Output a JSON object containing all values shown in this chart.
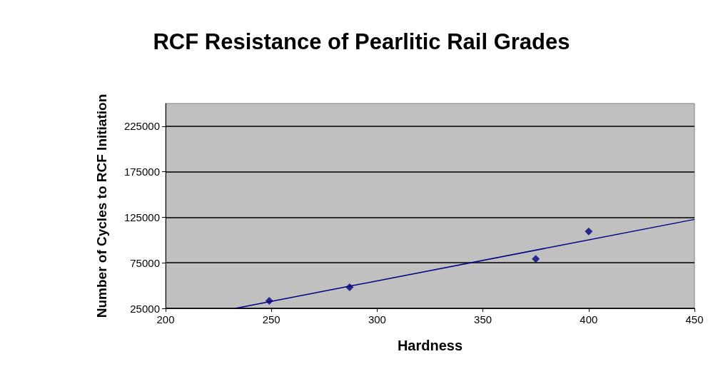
{
  "chart_data": {
    "type": "scatter",
    "title": "RCF Resistance of Pearlitic Rail Grades",
    "xlabel": "Hardness",
    "ylabel": "Number of Cycles to RCF Initiation",
    "series": [
      {
        "color": "#000080",
        "x": [
          249,
          287,
          375,
          400
        ],
        "values": [
          33300,
          48100,
          79200,
          109500
        ],
        "marker": "diamond"
      },
      {
        "type": "line",
        "color": "#000080",
        "x": [
          233,
          450
        ],
        "values": [
          25000,
          122700
        ],
        "marker": "none",
        "line_style": "solid"
      }
    ],
    "xlim": [
      200,
      450
    ],
    "xticks": [
      200,
      250,
      300,
      350,
      400,
      450
    ],
    "ylim": [
      25000,
      250000
    ],
    "yticks": [
      25000,
      75000,
      125000,
      175000,
      225000
    ],
    "grid": "y"
  }
}
